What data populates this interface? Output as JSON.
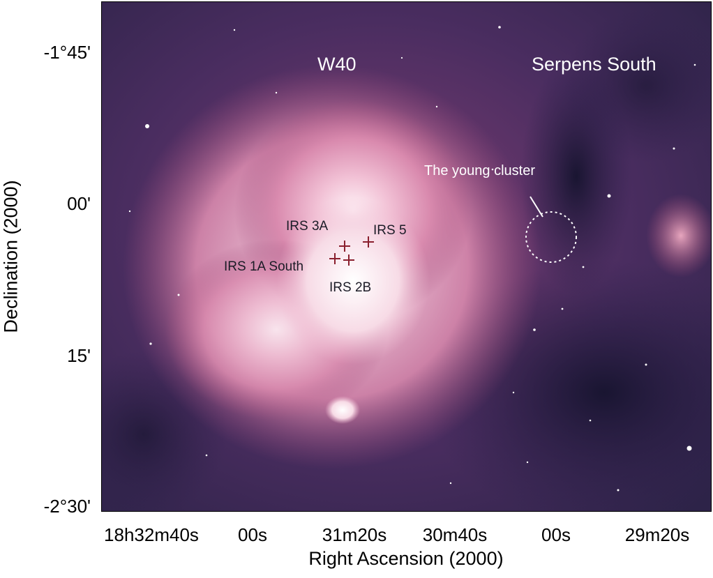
{
  "axes": {
    "ylabel": "Declination (2000)",
    "xlabel": "Right Ascension (2000)",
    "yticks": [
      {
        "main": "-1°45'"
      },
      {
        "main": "00'"
      },
      {
        "main": "15'"
      },
      {
        "main": "-2°30'"
      }
    ],
    "xticks": [
      {
        "text": "18h32m40s"
      },
      {
        "text": "00s"
      },
      {
        "text": "31m20s"
      },
      {
        "text": "30m40s"
      },
      {
        "text": "00s"
      },
      {
        "text": "29m20s"
      }
    ]
  },
  "labels": {
    "w40": "W40",
    "serpens": "Serpens South",
    "cluster": "The young cluster",
    "irs3a": "IRS 3A",
    "irs5": "IRS 5",
    "irs1a": "IRS 1A South",
    "irs2b": "IRS 2B"
  },
  "colors": {
    "nebula": "#f3c7d8",
    "background_sky": "#3b2a5e",
    "dark_cloud": "#1c1736",
    "marker": "#8a1f2e"
  }
}
